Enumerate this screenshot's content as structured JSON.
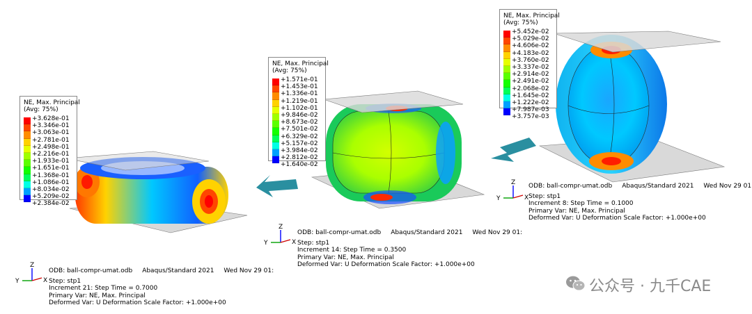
{
  "colors": {
    "contour": [
      "#0000ff",
      "#0046ff",
      "#008cff",
      "#00d2ff",
      "#00ffe6",
      "#00ffa0",
      "#00ff5a",
      "#12ff00",
      "#5aff00",
      "#a0ff00",
      "#e6ff00",
      "#ffd200",
      "#ff8c00",
      "#ff4600",
      "#ff0000"
    ],
    "arrow": "#2a8fa0",
    "plate": "#d9d9d9"
  },
  "models": [
    {
      "legend": {
        "title_line1": "NE, Max. Principal",
        "title_line2": "(Avg: 75%)",
        "values": [
          "+3.628e-01",
          "+3.346e-01",
          "+3.063e-01",
          "+2.781e-01",
          "+2.498e-01",
          "+2.216e-01",
          "+1.933e-01",
          "+1.651e-01",
          "+1.368e-01",
          "+1.086e-01",
          "+8.034e-02",
          "+5.209e-02",
          "+2.384e-02"
        ]
      },
      "info": {
        "odb": "ODB: ball-compr-umat.odb",
        "solver": "Abaqus/Standard 2021",
        "date": "Wed Nov 29 01:",
        "step": "Step: stp1",
        "increment": "Increment     21: Step Time =    0.7000",
        "primary": "Primary Var: NE, Max. Principal",
        "deformed": "Deformed Var: U   Deformation Scale Factor: +1.000e+00"
      }
    },
    {
      "legend": {
        "title_line1": "NE, Max. Principal",
        "title_line2": "(Avg: 75%)",
        "values": [
          "+1.571e-01",
          "+1.453e-01",
          "+1.336e-01",
          "+1.219e-01",
          "+1.102e-01",
          "+9.846e-02",
          "+8.673e-02",
          "+7.501e-02",
          "+6.329e-02",
          "+5.157e-02",
          "+3.984e-02",
          "+2.812e-02",
          "+1.640e-02"
        ]
      },
      "info": {
        "odb": "ODB: ball-compr-umat.odb",
        "solver": "Abaqus/Standard 2021",
        "date": "Wed Nov 29 01:",
        "step": "Step: stp1",
        "increment": "Increment     14: Step Time =    0.3500",
        "primary": "Primary Var: NE, Max. Principal",
        "deformed": "Deformed Var: U   Deformation Scale Factor: +1.000e+00"
      }
    },
    {
      "legend": {
        "title_line1": "NE, Max. Principal",
        "title_line2": "(Avg: 75%)",
        "values": [
          "+5.452e-02",
          "+5.029e-02",
          "+4.606e-02",
          "+4.183e-02",
          "+3.760e-02",
          "+3.337e-02",
          "+2.914e-02",
          "+2.491e-02",
          "+2.068e-02",
          "+1.645e-02",
          "+1.222e-02",
          "+7.987e-03",
          "+3.757e-03"
        ]
      },
      "info": {
        "odb": "ODB: ball-compr-umat.odb",
        "solver": "Abaqus/Standard 2021",
        "date": "Wed Nov 29 01:",
        "step": "Step: stp1",
        "increment": "Increment      8: Step Time =    0.1000",
        "primary": "Primary Var: NE, Max. Principal",
        "deformed": "Deformed Var: U   Deformation Scale Factor: +1.000e+00"
      }
    }
  ],
  "triad": {
    "z": "Z",
    "y": "Y",
    "x": "X"
  },
  "watermark": "公众号 · 九千CAE"
}
